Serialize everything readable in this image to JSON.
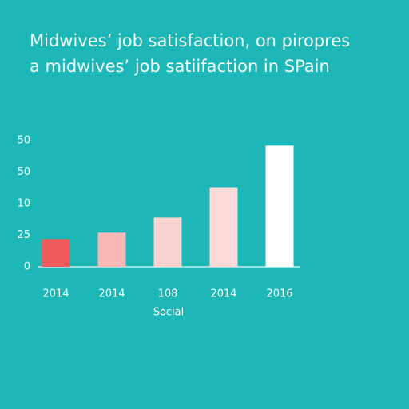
{
  "chart_data": {
    "type": "bar",
    "title": "Midwives’ job satisfaction, on piropres",
    "subtitle": "a midwives’ job satiifaction in SPain",
    "x_label": "Social",
    "categories": [
      "2014",
      "2014",
      "108",
      "2014",
      "2016"
    ],
    "values": [
      22,
      27,
      39,
      63,
      96
    ],
    "colors": [
      "#f05a5c",
      "#f8b9b6",
      "#fad2d0",
      "#fbdada",
      "#ffffff"
    ],
    "ylim": [
      0,
      100
    ],
    "yticks": [
      0,
      25,
      {
        "value": 50,
        "label": "10"
      },
      {
        "value": 75,
        "label": "50"
      },
      {
        "value": 100,
        "label": "50"
      }
    ],
    "grid": false
  }
}
